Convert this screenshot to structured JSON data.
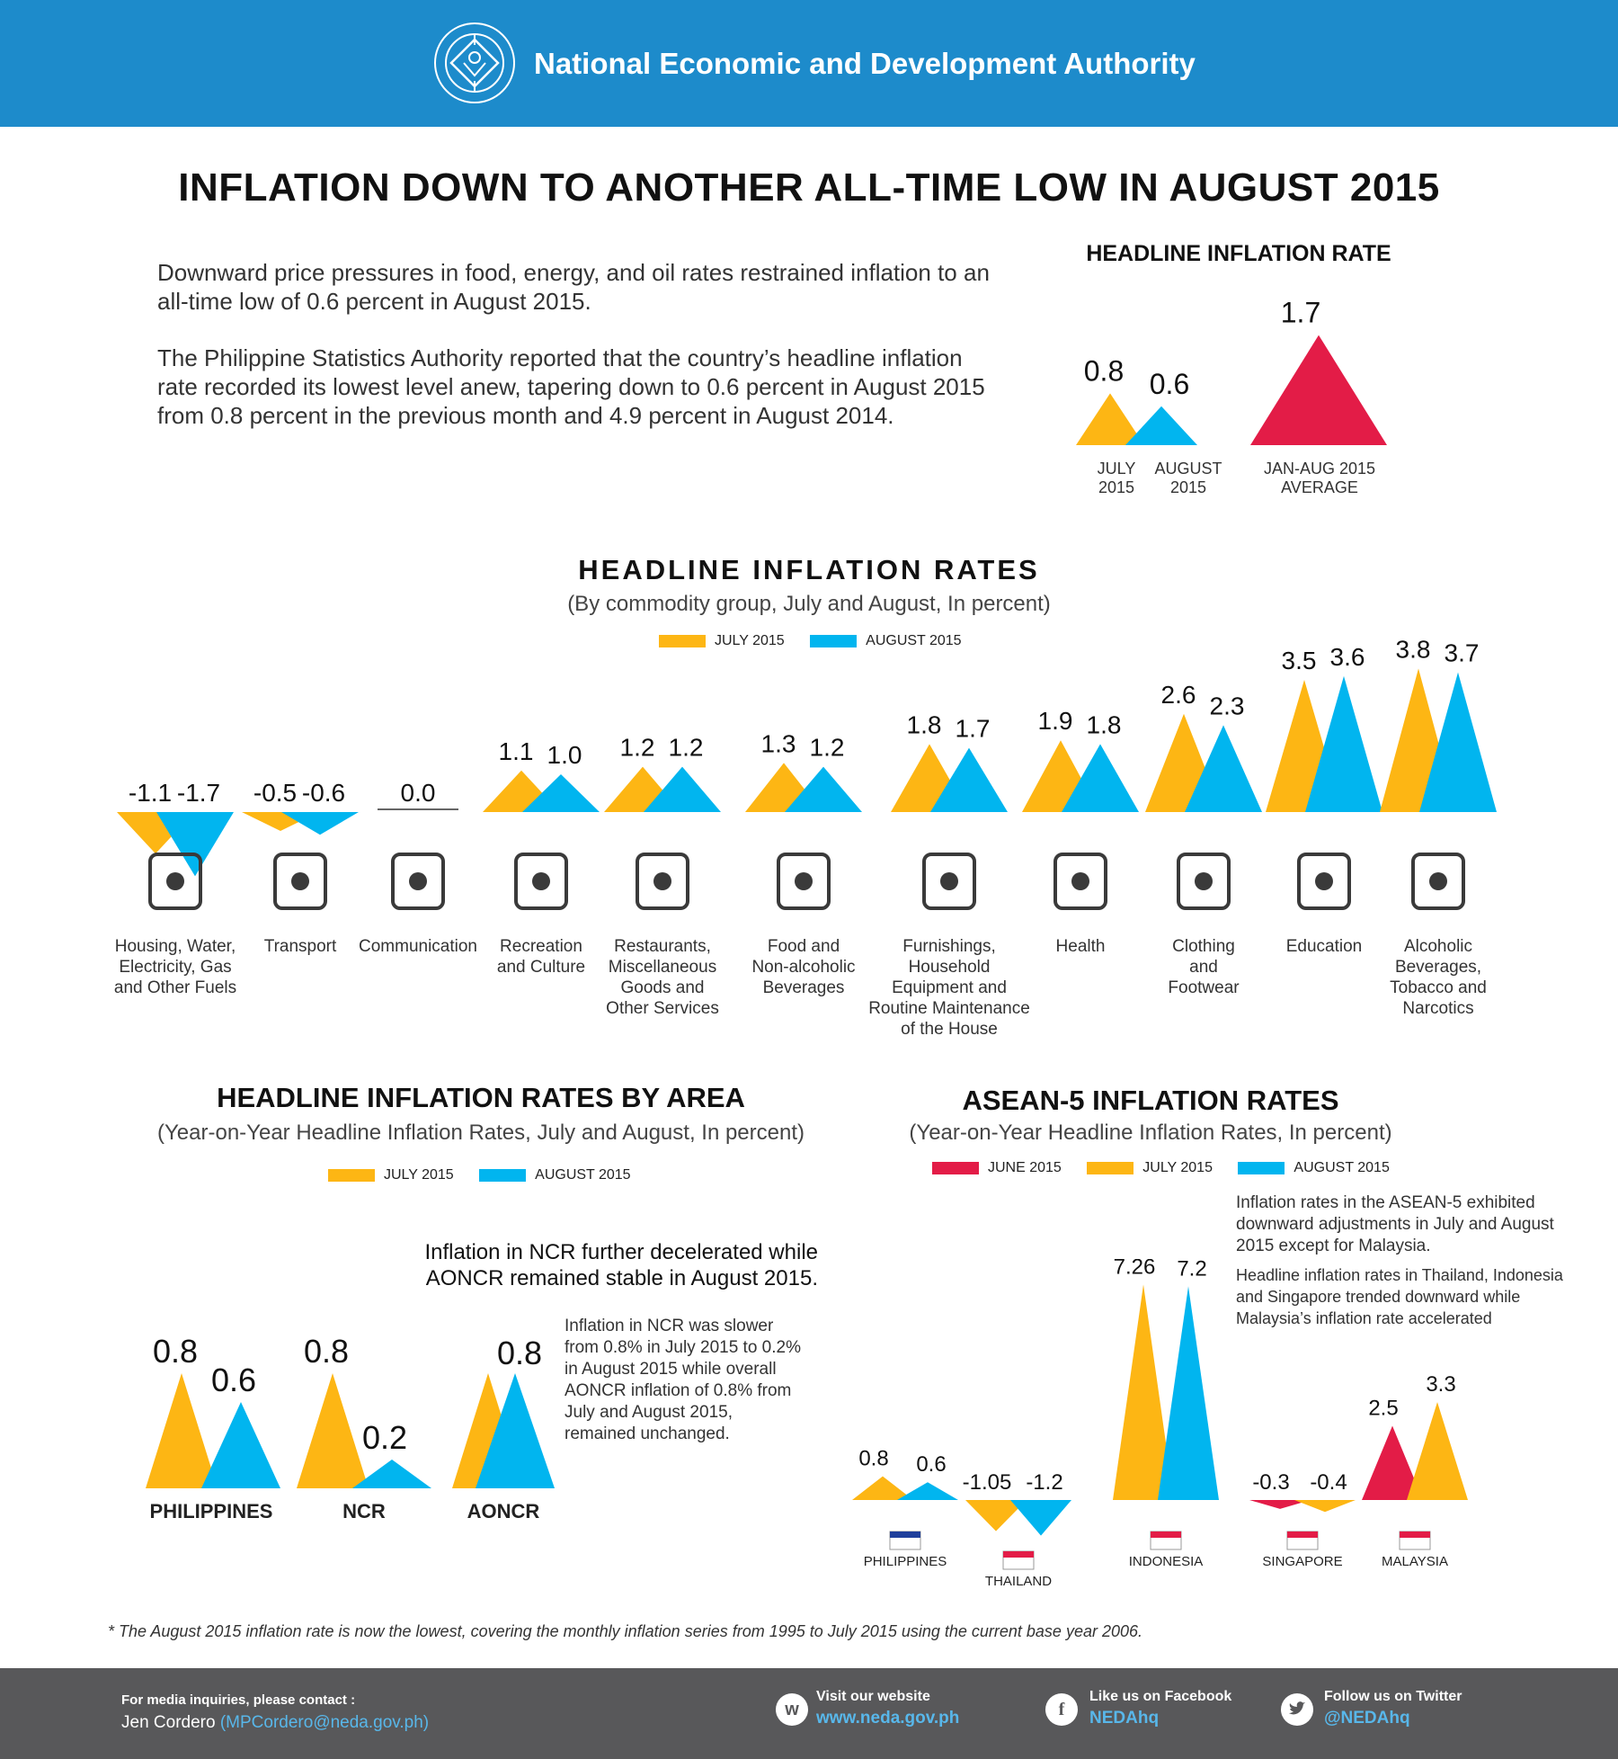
{
  "header": {
    "org_name": "National Economic and Development Authority"
  },
  "colors": {
    "july": "#fdb614",
    "august": "#01b5ef",
    "june": "#e31c47",
    "average": "#e31c47",
    "header": "#1d8bcb",
    "footer": "#58585a"
  },
  "title": "INFLATION DOWN TO ANOTHER ALL-TIME LOW IN AUGUST 2015",
  "intro": {
    "p1": "Downward price pressures in food, energy, and oil rates restrained inflation to an all-time low of 0.6 percent in August 2015.",
    "p2": "The Philippine Statistics Authority reported that the country’s headline inflation rate recorded its lowest level anew, tapering down to 0.6 percent in August 2015 from 0.8 percent in the previous month and 4.9 percent in August 2014."
  },
  "commodity_section": {
    "title": "HEADLINE INFLATION RATES",
    "subtitle": "(By commodity group, July and August, In percent)",
    "legend_july": "JULY 2015",
    "legend_august": "AUGUST 2015"
  },
  "area_section": {
    "title": "HEADLINE INFLATION RATES BY AREA",
    "subtitle": "(Year-on-Year Headline Inflation Rates, July and August, In percent)",
    "legend_july": "JULY 2015",
    "legend_august": "AUGUST 2015",
    "note_title": "Inflation in NCR further decelerated while AONCR remained stable in August 2015.",
    "note_body": "Inflation in NCR was slower from 0.8% in July 2015 to 0.2% in August 2015 while overall AONCR inflation of 0.8% from July and August 2015, remained unchanged."
  },
  "asean_section": {
    "title": "ASEAN-5 INFLATION RATES",
    "subtitle": "(Year-on-Year Headline Inflation Rates, In percent)",
    "legend_june": "JUNE 2015",
    "legend_july": "JULY 2015",
    "legend_august": "AUGUST 2015",
    "note1": "Inflation rates in the ASEAN-5 exhibited downward adjustments in July and August 2015 except for Malaysia.",
    "note2": "Headline inflation rates in Thailand, Indonesia and Singapore trended downward while Malaysia’s inflation rate accelerated"
  },
  "footnote": "* The August 2015 inflation rate is now the lowest, covering the monthly inflation series from 1995 to July 2015 using the current base year 2006.",
  "footer": {
    "contact_head": "For media inquiries, please contact :",
    "contact_name": "Jen Cordero",
    "contact_email": "(MPCordero@neda.gov.ph)",
    "website_head": "Visit our website",
    "website": "www.neda.gov.ph",
    "facebook_head": "Like us on Facebook",
    "facebook": "NEDAhq",
    "twitter_head": "Follow us on Twitter",
    "twitter": "@NEDAhq"
  },
  "chart_data": [
    {
      "id": "headline",
      "type": "bar",
      "title": "HEADLINE INFLATION RATE",
      "categories": [
        "JULY\n2015",
        "AUGUST\n2015",
        "JAN-AUG 2015\nAVERAGE"
      ],
      "values": [
        "0.8",
        "0.6",
        "1.7"
      ]
    },
    {
      "id": "commodity",
      "type": "bar",
      "title": "HEADLINE INFLATION RATES",
      "categories": [
        "Housing, Water,\nElectricity, Gas\nand Other Fuels",
        "Transport",
        "Communication",
        "Recreation\nand Culture",
        "Restaurants,\nMiscellaneous\nGoods and\nOther Services",
        "Food and\nNon-alcoholic\nBeverages",
        "Furnishings,\nHousehold\nEquipment and\nRoutine Maintenance\nof the House",
        "Health",
        "Clothing\nand\nFootwear",
        "Education",
        "Alcoholic\nBeverages,\nTobacco and\nNarcotics"
      ],
      "series": [
        {
          "name": "JULY 2015",
          "values": [
            "-1.1",
            "-0.5",
            "0.0",
            "1.1",
            "1.2",
            "1.3",
            "1.8",
            "1.9",
            "2.6",
            "3.5",
            "3.8"
          ]
        },
        {
          "name": "AUGUST 2015",
          "values": [
            "-1.7",
            "-0.6",
            "0.0",
            "1.0",
            "1.2",
            "1.2",
            "1.7",
            "1.8",
            "2.3",
            "3.6",
            "3.7"
          ]
        }
      ]
    },
    {
      "id": "area",
      "type": "bar",
      "title": "HEADLINE INFLATION RATES BY AREA",
      "categories": [
        "PHILIPPINES",
        "NCR",
        "AONCR"
      ],
      "series": [
        {
          "name": "JULY 2015",
          "values": [
            "0.8",
            "0.8",
            "0.8"
          ]
        },
        {
          "name": "AUGUST 2015",
          "values": [
            "0.6",
            "0.2",
            "0.8"
          ]
        }
      ]
    },
    {
      "id": "asean",
      "type": "bar",
      "title": "ASEAN-5 INFLATION RATES",
      "groups": [
        {
          "country": "PHILIPPINES",
          "bars": [
            {
              "series": "JULY 2015",
              "value": "0.8"
            },
            {
              "series": "AUGUST 2015",
              "value": "0.6"
            }
          ]
        },
        {
          "country": "THAILAND",
          "bars": [
            {
              "series": "JULY 2015",
              "value": "-1.05"
            },
            {
              "series": "AUGUST 2015",
              "value": "-1.2"
            }
          ]
        },
        {
          "country": "INDONESIA",
          "bars": [
            {
              "series": "JULY 2015",
              "value": "7.26"
            },
            {
              "series": "AUGUST 2015",
              "value": "7.2"
            }
          ]
        },
        {
          "country": "SINGAPORE",
          "bars": [
            {
              "series": "JUNE 2015",
              "value": "-0.3"
            },
            {
              "series": "JULY 2015",
              "value": "-0.4"
            }
          ]
        },
        {
          "country": "MALAYSIA",
          "bars": [
            {
              "series": "JUNE 2015",
              "value": "2.5"
            },
            {
              "series": "JULY 2015",
              "value": "3.3"
            }
          ]
        }
      ]
    }
  ]
}
